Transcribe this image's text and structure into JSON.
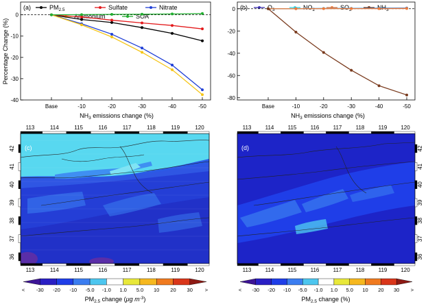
{
  "colors": {
    "pm25": "#000000",
    "sulfate": "#e31a1c",
    "nitrate": "#1f3fd6",
    "ammonium": "#f5c518",
    "soa": "#1fae2e",
    "o3": "#3a2fb0",
    "no2": "#39d2e0",
    "so2": "#f07a3a",
    "nh3": "#7a3b1e",
    "map_sea": "#2040e8",
    "map_light": "#5bd6ef",
    "map_deep": "#1d24c8"
  },
  "chart_data": [
    {
      "type": "line",
      "panel": "(a)",
      "categories": [
        "Base",
        "-10",
        "-20",
        "-30",
        "-40",
        "-50"
      ],
      "xlabel_pre": "NH",
      "xlabel_sub": "3",
      "xlabel_post": " emissions change (%)",
      "ylabel": "Percentage Change (%)",
      "ylim": [
        -40,
        6
      ],
      "yticks": [
        "0",
        "-10",
        "-20",
        "-30",
        "-40"
      ],
      "zero_line": "dashed",
      "series": [
        {
          "key": "pm25",
          "name_pre": "PM",
          "name_sub": "2.5",
          "values": [
            0,
            -2.2,
            -3.6,
            -6.0,
            -8.7,
            -12.2
          ]
        },
        {
          "key": "sulfate",
          "name_pre": "Sulfate",
          "name_sub": "",
          "values": [
            0,
            -1.0,
            -2.5,
            -3.8,
            -5.0,
            -6.6
          ]
        },
        {
          "key": "nitrate",
          "name_pre": "Nitrate",
          "name_sub": "",
          "values": [
            0,
            -4.2,
            -9.1,
            -15.6,
            -23.6,
            -35.2
          ]
        },
        {
          "key": "ammonium",
          "name_pre": "Ammonium",
          "name_sub": "",
          "values": [
            0,
            -4.7,
            -10.4,
            -17.6,
            -25.8,
            -37.5
          ]
        },
        {
          "key": "soa",
          "name_pre": "SOA",
          "name_sub": "",
          "values": [
            0,
            0.1,
            0.2,
            0.3,
            0.4,
            0.6
          ]
        }
      ]
    },
    {
      "type": "line",
      "panel": "(b)",
      "categories": [
        "Base",
        "-10",
        "-20",
        "-30",
        "-40",
        "-50"
      ],
      "xlabel_pre": "NH",
      "xlabel_sub": "3",
      "xlabel_post": " emissions change (%)",
      "ylim": [
        -82,
        6
      ],
      "yticks": [
        "0",
        "-20",
        "-40",
        "-60",
        "-80"
      ],
      "zero_line": "dashed",
      "series": [
        {
          "key": "o3",
          "name_pre": "O",
          "name_sub": "3",
          "values": [
            0,
            0.1,
            0.2,
            0.3,
            0.5,
            0.6
          ]
        },
        {
          "key": "no2",
          "name_pre": "NO",
          "name_sub": "2",
          "values": [
            0,
            0.1,
            0.2,
            0.2,
            0.3,
            0.4
          ]
        },
        {
          "key": "so2",
          "name_pre": "SO",
          "name_sub": "2",
          "values": [
            0,
            0.0,
            0.1,
            0.1,
            0.1,
            0.2
          ]
        },
        {
          "key": "nh3",
          "name_pre": "NH",
          "name_sub": "3",
          "values": [
            0,
            -21.0,
            -39.3,
            -55.3,
            -69.2,
            -77.5
          ]
        }
      ]
    },
    {
      "type": "heatmap",
      "panel": "(c)",
      "lon_ticks": [
        "113",
        "114",
        "115",
        "116",
        "117",
        "118",
        "119",
        "120"
      ],
      "lat_ticks": [
        "42",
        "41",
        "40",
        "39",
        "38",
        "37",
        "36"
      ],
      "colorbar_ticks": [
        "<",
        "-30",
        "-20",
        "-10",
        "-5.0",
        "-1.0",
        "1.0",
        "5.0",
        "10",
        "20",
        "30",
        ">"
      ],
      "colorbar_label_pre": "PM",
      "colorbar_label_sub": "2.5",
      "colorbar_label_post": " change (",
      "colorbar_label_unit": "μg m",
      "colorbar_label_exp": "-3",
      "colorbar_label_close": ")"
    },
    {
      "type": "heatmap",
      "panel": "(d)",
      "lon_ticks": [
        "113",
        "114",
        "115",
        "116",
        "117",
        "118",
        "119",
        "120"
      ],
      "lat_ticks": [
        "42",
        "41",
        "40",
        "39",
        "38",
        "37",
        "36"
      ],
      "colorbar_ticks": [
        "<",
        "-30",
        "-20",
        "-10",
        "-5.0",
        "-1.0",
        "1.0",
        "5.0",
        "10",
        "20",
        "30",
        ">"
      ],
      "colorbar_label_pre": "PM",
      "colorbar_label_sub": "2.5",
      "colorbar_label_post": " change (%)"
    }
  ],
  "colorbar_colors": [
    "#3d1496",
    "#2a1fc4",
    "#1f3ee8",
    "#3b7df0",
    "#4dc6ef",
    "#ffffff",
    "#e8e83a",
    "#f6b81f",
    "#f07a1f",
    "#d9361a",
    "#8e1a14"
  ]
}
